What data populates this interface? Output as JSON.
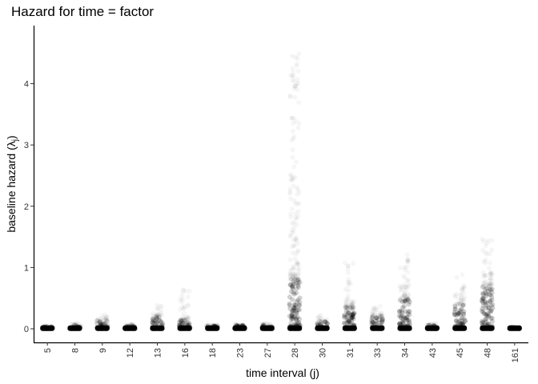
{
  "chart_data": {
    "type": "scatter",
    "title": "Hazard for time = factor",
    "xlabel": "time interval (j)",
    "ylabel_main": "baseline hazard (λ",
    "ylabel_sub": "j",
    "ylabel_close": ")",
    "categories": [
      "5",
      "8",
      "9",
      "12",
      "13",
      "16",
      "18",
      "23",
      "27",
      "28",
      "30",
      "31",
      "33",
      "34",
      "43",
      "45",
      "48",
      "161"
    ],
    "yticks": [
      "0",
      "1",
      "2",
      "3",
      "4"
    ],
    "ylim": [
      -0.22,
      4.95
    ],
    "grid": false,
    "point_color": "#000000",
    "series": [
      {
        "max_hazard": [
          0.06,
          0.1,
          0.25,
          0.08,
          0.4,
          0.75,
          0.07,
          0.09,
          0.1,
          4.75,
          0.22,
          1.1,
          0.4,
          1.25,
          0.1,
          0.9,
          1.5,
          0.03
        ],
        "dense_top": [
          0.04,
          0.06,
          0.14,
          0.06,
          0.2,
          0.15,
          0.05,
          0.06,
          0.07,
          0.8,
          0.12,
          0.35,
          0.22,
          0.5,
          0.06,
          0.4,
          0.7,
          0.02
        ]
      }
    ]
  }
}
